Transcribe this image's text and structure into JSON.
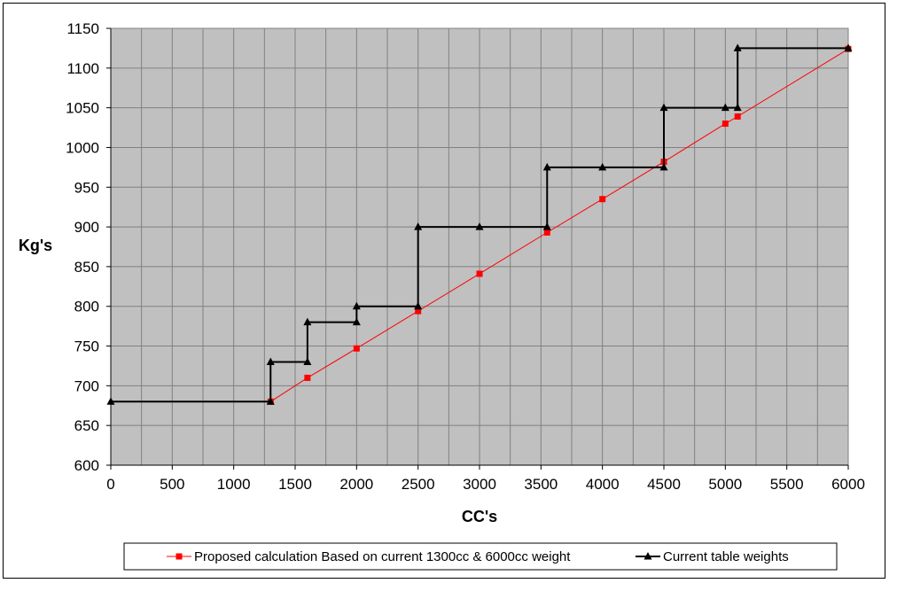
{
  "chart_data": {
    "type": "line",
    "title": "",
    "xlabel": "CC's",
    "ylabel": "Kg's",
    "xlim": [
      0,
      6000
    ],
    "ylim": [
      600,
      1150
    ],
    "x_ticks": [
      0,
      500,
      1000,
      1500,
      2000,
      2500,
      3000,
      3500,
      4000,
      4500,
      5000,
      5500,
      6000
    ],
    "y_ticks": [
      600,
      650,
      700,
      750,
      800,
      850,
      900,
      950,
      1000,
      1050,
      1100,
      1150
    ],
    "x_minor_step": 250,
    "grid": true,
    "plot_background": "#c0c0c0",
    "grid_color": "#808080",
    "legend_position": "bottom",
    "series": [
      {
        "name": "Proposed calculation Based on current 1300cc & 6000cc weight",
        "color": "#ff0000",
        "marker": "square",
        "line_color": "#ff0000",
        "points": [
          {
            "x": 1300,
            "y": 680
          },
          {
            "x": 1600,
            "y": 710
          },
          {
            "x": 2000,
            "y": 747
          },
          {
            "x": 2500,
            "y": 794
          },
          {
            "x": 3000,
            "y": 841
          },
          {
            "x": 3550,
            "y": 893
          },
          {
            "x": 4000,
            "y": 935
          },
          {
            "x": 4500,
            "y": 982
          },
          {
            "x": 5000,
            "y": 1030
          },
          {
            "x": 5100,
            "y": 1039
          },
          {
            "x": 6000,
            "y": 1124
          }
        ]
      },
      {
        "name": "Current table weights",
        "color": "#000000",
        "marker": "triangle",
        "line_color": "#000000",
        "points": [
          {
            "x": 0,
            "y": 680
          },
          {
            "x": 1300,
            "y": 680
          },
          {
            "x": 1300,
            "y": 730
          },
          {
            "x": 1600,
            "y": 730
          },
          {
            "x": 1600,
            "y": 780
          },
          {
            "x": 2000,
            "y": 780
          },
          {
            "x": 2000,
            "y": 800
          },
          {
            "x": 2500,
            "y": 800
          },
          {
            "x": 2500,
            "y": 900
          },
          {
            "x": 3000,
            "y": 900
          },
          {
            "x": 3550,
            "y": 900
          },
          {
            "x": 3550,
            "y": 975
          },
          {
            "x": 4000,
            "y": 975
          },
          {
            "x": 4500,
            "y": 975
          },
          {
            "x": 4500,
            "y": 1050
          },
          {
            "x": 5000,
            "y": 1050
          },
          {
            "x": 5100,
            "y": 1050
          },
          {
            "x": 5100,
            "y": 1125
          },
          {
            "x": 6000,
            "y": 1125
          }
        ]
      }
    ]
  }
}
